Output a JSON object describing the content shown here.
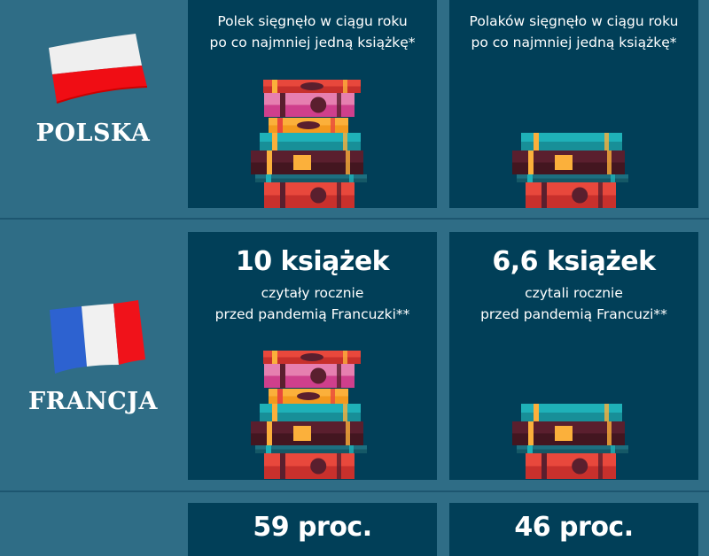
{
  "colors": {
    "background": "#2f6d86",
    "card": "#013f58",
    "text": "#ffffff"
  },
  "rows": [
    {
      "country": "POLSKA",
      "flag": "poland-flag",
      "cards": [
        {
          "value": "",
          "text_line1": "Polek sięgnęło w ciągu roku",
          "text_line2": "po co najmniej jedną książkę*",
          "stack": "large"
        },
        {
          "value": "",
          "text_line1": "Polaków sięgnęło w ciągu roku",
          "text_line2": "po co najmniej jedną książkę*",
          "stack": "small"
        }
      ]
    },
    {
      "country": "FRANCJA",
      "flag": "france-flag",
      "cards": [
        {
          "value": "10 książek",
          "text_line1": "czytały rocznie",
          "text_line2": "przed pandemią Francuzki**",
          "stack": "large"
        },
        {
          "value": "6,6 książek",
          "text_line1": "czytali rocznie",
          "text_line2": "przed pandemią Francuzi**",
          "stack": "small"
        }
      ]
    },
    {
      "cards": [
        {
          "value": "59 proc."
        },
        {
          "value": "46 proc."
        }
      ]
    }
  ]
}
